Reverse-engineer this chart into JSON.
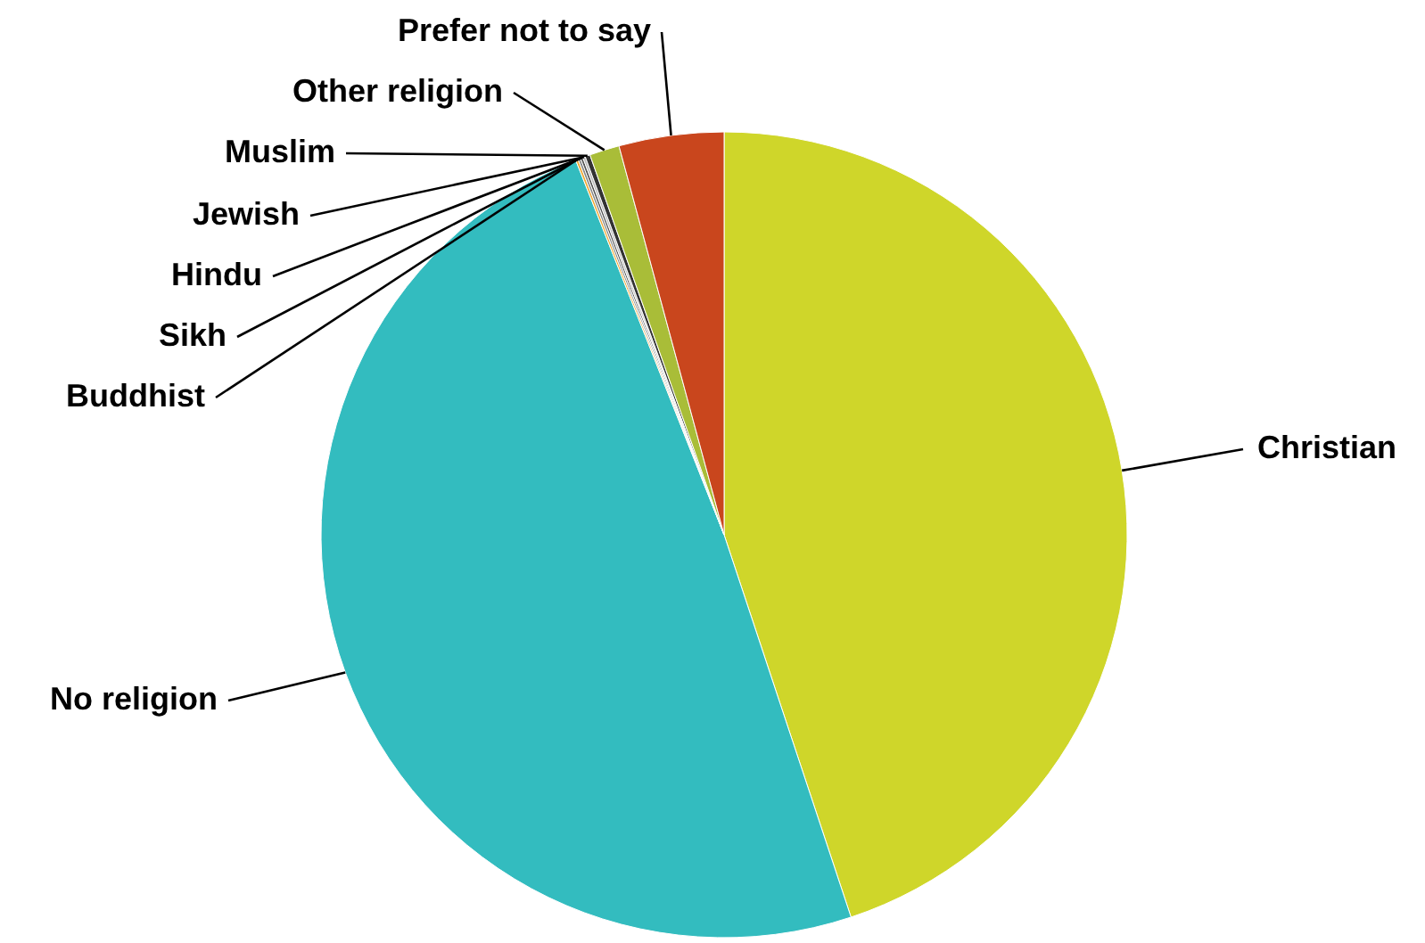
{
  "chart_data": {
    "type": "pie",
    "categories": [
      "Christian",
      "No religion",
      "Buddhist",
      "Sikh",
      "Hindu",
      "Jewish",
      "Muslim",
      "Other religion",
      "Prefer not to say"
    ],
    "values": [
      44.9,
      49.1,
      0.1,
      0.1,
      0.1,
      0.1,
      0.2,
      1.2,
      4.2
    ],
    "colors": [
      "#cfd62a",
      "#33bcbf",
      "#f0a830",
      "#888888",
      "#555555",
      "#bbbbbb",
      "#333333",
      "#a9bd38",
      "#c9461d"
    ]
  }
}
